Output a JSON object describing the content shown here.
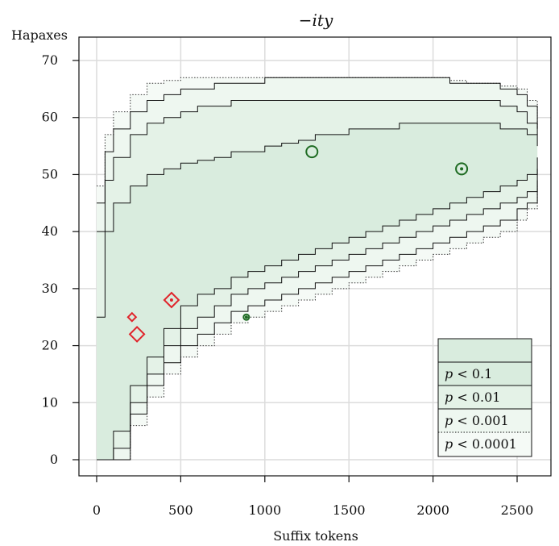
{
  "chart_data": {
    "type": "scatter",
    "title": "−ity",
    "xlabel": "Suffix tokens",
    "ylabel": "Hapaxes",
    "xlim": [
      -50,
      2650
    ],
    "ylim": [
      -2,
      71
    ],
    "x_ticks": [
      "0",
      "500",
      "1000",
      "1500",
      "2000",
      "2500"
    ],
    "x_tick_values": [
      0,
      500,
      1000,
      1500,
      2000,
      2500
    ],
    "y_ticks": [
      "0",
      "10",
      "20",
      "30",
      "40",
      "50",
      "60",
      "70"
    ],
    "y_tick_values": [
      0,
      10,
      20,
      30,
      40,
      50,
      60,
      70
    ],
    "grid": true,
    "legend_position": "bottom-right",
    "legend": {
      "entries": [
        {
          "label_html": "p < 0.1",
          "prefix": "p",
          "rest": " < 0.1",
          "style": "solid"
        },
        {
          "label_html": "p < 0.01",
          "prefix": "p",
          "rest": " < 0.01",
          "style": "solid"
        },
        {
          "label_html": "p < 0.001",
          "prefix": "p",
          "rest": " < 0.001",
          "style": "solid"
        },
        {
          "label_html": "p < 0.0001",
          "prefix": "p",
          "rest": " < 0.0001",
          "style": "dotted"
        }
      ]
    },
    "colors": {
      "band_inner": "#d9ecde",
      "band_2": "#e4f2e7",
      "band_3": "#eef7f0",
      "band_4": "#f5faf6",
      "red": "#e0242b",
      "green": "#1e6b22",
      "grid": "#dcdcdc"
    },
    "bands": {
      "x": [
        0,
        50,
        100,
        200,
        300,
        400,
        500,
        600,
        700,
        800,
        900,
        1000,
        1100,
        1200,
        1300,
        1400,
        1500,
        1600,
        1700,
        1800,
        1900,
        2000,
        2100,
        2200,
        2300,
        2400,
        2500,
        2560,
        2620
      ],
      "upper_p0001": [
        48,
        57,
        61,
        64,
        66,
        66.5,
        67,
        67,
        67,
        67,
        67,
        67,
        67,
        67,
        67,
        67,
        67,
        67,
        67,
        67,
        67,
        67,
        66.5,
        66,
        66,
        65.5,
        65,
        63,
        58
      ],
      "upper_p001": [
        45,
        54,
        58,
        61,
        63,
        64,
        65,
        65,
        66,
        66,
        66,
        67,
        67,
        67,
        67,
        67,
        67,
        67,
        67,
        67,
        67,
        67,
        66,
        66,
        66,
        65,
        64,
        62,
        58
      ],
      "upper_p01": [
        40,
        49,
        53,
        57,
        59,
        60,
        61,
        62,
        62,
        63,
        63,
        63,
        63,
        63,
        63,
        63,
        63,
        63,
        63,
        63,
        63,
        63,
        63,
        63,
        63,
        62,
        61,
        59,
        57
      ],
      "upper_p1": [
        25,
        40,
        45,
        48,
        50,
        51,
        52,
        52.5,
        53,
        54,
        54,
        55,
        55.5,
        56,
        57,
        57,
        58,
        58,
        58,
        59,
        59,
        59,
        59,
        59,
        59,
        58,
        58,
        57,
        55
      ],
      "lower_p1": [
        0,
        0,
        5,
        13,
        18,
        23,
        27,
        29,
        30,
        32,
        33,
        34,
        35,
        36,
        37,
        38,
        39,
        40,
        41,
        42,
        43,
        44,
        45,
        46,
        47,
        48,
        49,
        50,
        53
      ],
      "lower_p01": [
        0,
        0,
        2,
        10,
        15,
        20,
        23,
        25,
        27,
        29,
        30,
        31,
        32,
        33,
        34,
        35,
        36,
        37,
        38,
        39,
        40,
        41,
        42,
        43,
        44,
        45,
        46,
        47,
        51
      ],
      "lower_p001": [
        0,
        0,
        0,
        8,
        13,
        17,
        20,
        22,
        24,
        26,
        27,
        28,
        29,
        30,
        31,
        32,
        33,
        34,
        35,
        36,
        37,
        38,
        39,
        40,
        41,
        42,
        44,
        45,
        49
      ],
      "lower_p0001": [
        0,
        0,
        0,
        6,
        11,
        15,
        18,
        20,
        22,
        24,
        25,
        26,
        27,
        28,
        29,
        30,
        31,
        32,
        33,
        34,
        35,
        36,
        37,
        38,
        39,
        40,
        42,
        44,
        48
      ]
    },
    "points": [
      {
        "x": 210,
        "y": 25,
        "shape": "diamond",
        "size": "small",
        "color": "red",
        "inner_dot": false
      },
      {
        "x": 240,
        "y": 22,
        "shape": "diamond",
        "size": "large",
        "color": "red",
        "inner_dot": false
      },
      {
        "x": 445,
        "y": 28,
        "shape": "diamond",
        "size": "large",
        "color": "red",
        "inner_dot": true
      },
      {
        "x": 890,
        "y": 25,
        "shape": "circle",
        "size": "small",
        "color": "green",
        "inner_dot": true
      },
      {
        "x": 1280,
        "y": 54,
        "shape": "circle",
        "size": "large",
        "color": "green",
        "inner_dot": false
      },
      {
        "x": 2170,
        "y": 51,
        "shape": "circle",
        "size": "large",
        "color": "green",
        "inner_dot": true
      }
    ]
  }
}
